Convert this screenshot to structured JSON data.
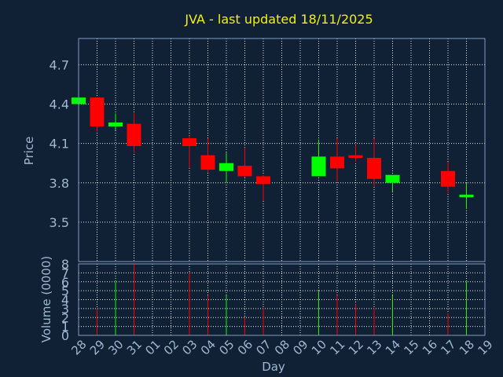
{
  "chart_data": {
    "type": "candlestick",
    "title": "JVA - last updated 18/11/2025",
    "xlabel": "Day",
    "ylabel_price": "Price",
    "ylabel_volume": "Volume (0000)",
    "day_labels": [
      "28",
      "29",
      "30",
      "31",
      "01",
      "02",
      "03",
      "04",
      "05",
      "06",
      "07",
      "08",
      "09",
      "10",
      "11",
      "12",
      "13",
      "14",
      "15",
      "16",
      "17",
      "18",
      "19"
    ],
    "price_ticks": [
      3.5,
      3.8,
      4.1,
      4.4,
      4.7
    ],
    "price_ylim": [
      3.2,
      4.9
    ],
    "volume_ticks": [
      0,
      1,
      2,
      3,
      4,
      5,
      6,
      7,
      8
    ],
    "volume_ylim": [
      0,
      8
    ],
    "grid": true,
    "colors": {
      "up": "#00ff00",
      "down": "#ff0000",
      "grid": "#ffffff",
      "frame": "#7f9cc0"
    },
    "candles": [
      {
        "day": "28",
        "open": 4.4,
        "high": 4.45,
        "low": 4.4,
        "close": 4.45,
        "volume": 0
      },
      {
        "day": "29",
        "open": 4.45,
        "high": 4.45,
        "low": 4.19,
        "close": 4.23,
        "volume": 3
      },
      {
        "day": "30",
        "open": 4.23,
        "high": 4.33,
        "low": 4.2,
        "close": 4.26,
        "volume": 6
      },
      {
        "day": "31",
        "open": 4.25,
        "high": 4.33,
        "low": 4.03,
        "close": 4.08,
        "volume": 8
      },
      {
        "day": "03",
        "open": 4.14,
        "high": 4.16,
        "low": 3.91,
        "close": 4.08,
        "volume": 7
      },
      {
        "day": "04",
        "open": 4.01,
        "high": 4.14,
        "low": 3.88,
        "close": 3.9,
        "volume": 4.5
      },
      {
        "day": "05",
        "open": 3.89,
        "high": 4.03,
        "low": 3.8,
        "close": 3.95,
        "volume": 4.5
      },
      {
        "day": "06",
        "open": 3.93,
        "high": 4.07,
        "low": 3.84,
        "close": 3.85,
        "volume": 2
      },
      {
        "day": "07",
        "open": 3.85,
        "high": 3.86,
        "low": 3.66,
        "close": 3.79,
        "volume": 3
      },
      {
        "day": "10",
        "open": 3.85,
        "high": 4.13,
        "low": 3.85,
        "close": 4.0,
        "volume": 5
      },
      {
        "day": "11",
        "open": 4.0,
        "high": 4.14,
        "low": 3.81,
        "close": 3.91,
        "volume": 4.5
      },
      {
        "day": "12",
        "open": 4.01,
        "high": 4.09,
        "low": 3.96,
        "close": 3.99,
        "volume": 3.5
      },
      {
        "day": "13",
        "open": 3.99,
        "high": 4.14,
        "low": 3.77,
        "close": 3.83,
        "volume": 3
      },
      {
        "day": "14",
        "open": 3.8,
        "high": 3.86,
        "low": 3.73,
        "close": 3.86,
        "volume": 4.5
      },
      {
        "day": "17",
        "open": 3.89,
        "high": 3.96,
        "low": 3.72,
        "close": 3.77,
        "volume": 2.5
      },
      {
        "day": "18",
        "open": 3.69,
        "high": 3.8,
        "low": 3.6,
        "close": 3.71,
        "volume": 6
      }
    ]
  }
}
